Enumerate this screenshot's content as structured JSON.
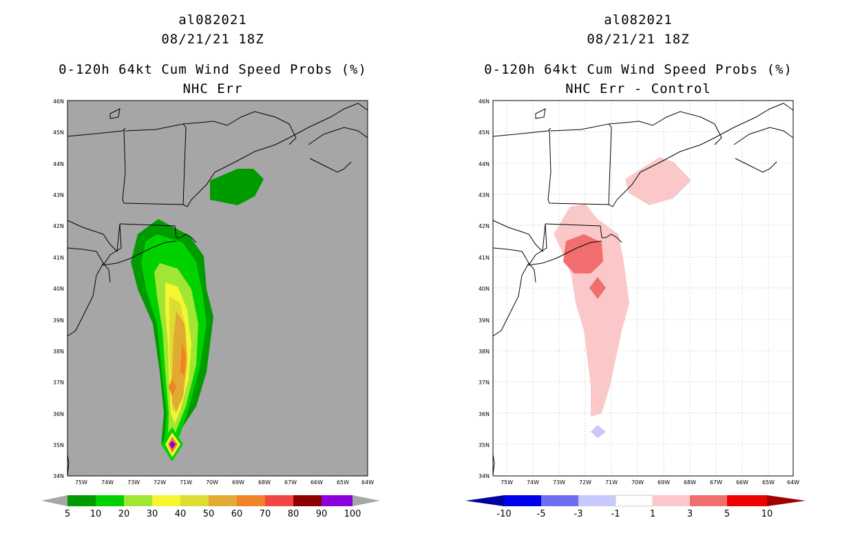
{
  "panels": [
    {
      "storm": "al082021",
      "datetime": "08/21/21 18Z",
      "title": "0-120h 64kt Cum Wind Speed Probs (%)",
      "subtitle": "NHC Err",
      "lat_labels": [
        "46N",
        "45N",
        "44N",
        "43N",
        "42N",
        "41N",
        "40N",
        "39N",
        "38N",
        "37N",
        "36N",
        "35N",
        "34N"
      ],
      "lon_labels": [
        "75W",
        "74W",
        "73W",
        "72W",
        "71W",
        "70W",
        "69W",
        "68W",
        "67W",
        "66W",
        "65W",
        "64W"
      ],
      "colorbar": {
        "labels": [
          "5",
          "10",
          "20",
          "30",
          "40",
          "50",
          "60",
          "70",
          "80",
          "90",
          "100"
        ],
        "colors": [
          "#009b00",
          "#00d200",
          "#a0e632",
          "#f5f532",
          "#dcdc32",
          "#e1aa32",
          "#f08228",
          "#f04646",
          "#8c0000",
          "#8c00dc"
        ]
      },
      "background": "#a6a6a6"
    },
    {
      "storm": "al082021",
      "datetime": "08/21/21 18Z",
      "title": "0-120h 64kt Cum Wind Speed Probs (%)",
      "subtitle": "NHC Err - Control",
      "lat_labels": [
        "46N",
        "45N",
        "44N",
        "43N",
        "42N",
        "41N",
        "40N",
        "39N",
        "38N",
        "37N",
        "36N",
        "35N",
        "34N"
      ],
      "lon_labels": [
        "75W",
        "74W",
        "73W",
        "72W",
        "71W",
        "70W",
        "69W",
        "68W",
        "67W",
        "66W",
        "65W",
        "64W"
      ],
      "colorbar": {
        "labels": [
          "-10",
          "-5",
          "-3",
          "-1",
          "1",
          "3",
          "5",
          "10"
        ],
        "colors": [
          "#0000a0",
          "#0000f0",
          "#6e6ef0",
          "#c8c8fa",
          "#ffffff",
          "#fac8c8",
          "#f06e6e",
          "#f00000",
          "#a00000"
        ]
      },
      "background": "#ffffff"
    }
  ]
}
